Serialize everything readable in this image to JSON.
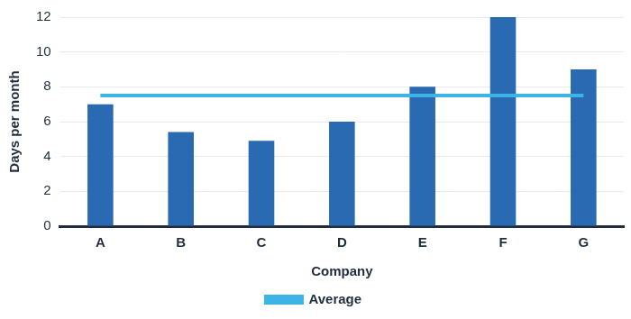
{
  "chart_data": {
    "type": "bar",
    "x_label": "Company",
    "y_label": "Days per month",
    "categories": [
      "A",
      "B",
      "C",
      "D",
      "E",
      "F",
      "G"
    ],
    "series": [
      {
        "type": "bar",
        "color": "#2a6ab3",
        "values": [
          7,
          5.4,
          4.9,
          6,
          8,
          12,
          9
        ]
      },
      {
        "name": "Average",
        "type": "line",
        "color": "#3cb4e5",
        "values": [
          7.5,
          7.5,
          7.5,
          7.5,
          7.5,
          7.5,
          7.5
        ]
      }
    ],
    "ylim": [
      0,
      12
    ],
    "yticks": [
      0,
      2,
      4,
      6,
      8,
      10,
      12
    ],
    "grid": true,
    "legend": "bottom"
  }
}
